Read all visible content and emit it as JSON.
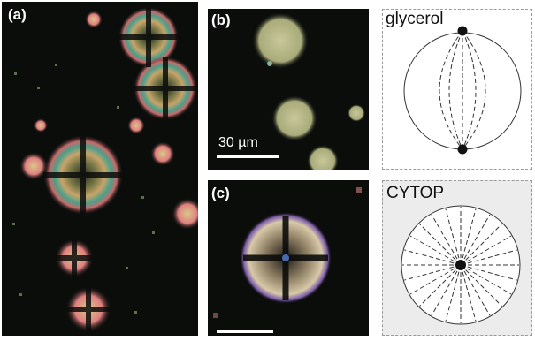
{
  "figure": {
    "panel_a": {
      "label": "(a)"
    },
    "panel_b": {
      "label": "(b)",
      "scale_text": "30 µm"
    },
    "panel_c": {
      "label": "(c)"
    },
    "schematic_top": {
      "label": "glycerol"
    },
    "schematic_bottom": {
      "label": "CYTOP"
    }
  }
}
